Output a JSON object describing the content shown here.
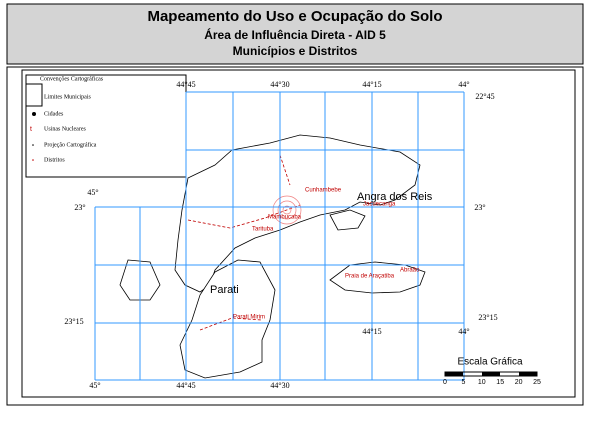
{
  "title": {
    "line1": "Mapeamento do Uso e Ocupação do Solo",
    "line2": "Área de Influência Direta - AID 5",
    "line3": "Municípios e Distritos"
  },
  "legend": {
    "heading": "Convenções Cartográficas",
    "items": [
      "Limites Municipais",
      "Cidades",
      "Usinas Nucleares",
      "Projeção Cartográfica",
      "Distritos"
    ]
  },
  "grid_labels": [
    "44°45",
    "44°30",
    "44°15",
    "44°",
    "22°45",
    "45°",
    "23°",
    "23°",
    "23°15",
    "23°15",
    "44°15",
    "44°",
    "45°",
    "44°45",
    "44°30"
  ],
  "places": [
    "Angra dos Reis",
    "Parati",
    "Cunhambebe",
    "Jacuecanga",
    "Mambucaba",
    "Tarituba",
    "Praia de Araçatiba",
    "Abraão",
    "Parati Mirim"
  ],
  "scale": {
    "title": "Escala Gráfica",
    "ticks": [
      "0",
      "5",
      "10",
      "15",
      "20",
      "25"
    ]
  }
}
